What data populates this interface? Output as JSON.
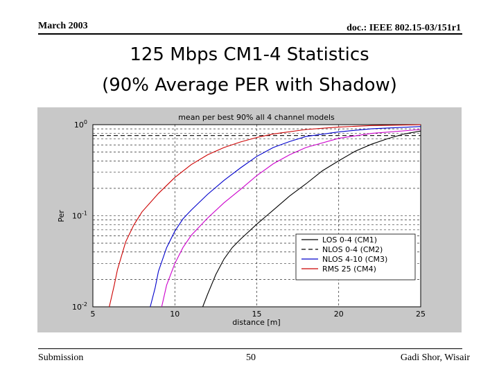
{
  "header": {
    "date": "March 2003",
    "doc": "doc.: IEEE 802.15-03/151r1"
  },
  "slide": {
    "title_line1": "125 Mbps CM1-4 Statistics",
    "title_line2": "(90% Average PER with Shadow)"
  },
  "footer": {
    "left": "Submission",
    "page": "50",
    "right": "Gadi Shor, Wisair"
  },
  "chart_data": {
    "type": "line",
    "title": "mean per best 90% all 4 channel models",
    "xlabel": "distance [m]",
    "ylabel": "Per",
    "xlim": [
      5,
      25
    ],
    "ylim": [
      0.01,
      1
    ],
    "yscale": "log",
    "grid": true,
    "legend_position": "lower-right",
    "x_ticks": [
      "5",
      "10",
      "15",
      "20",
      "25"
    ],
    "y_ticks": [
      {
        "base": "10",
        "exp": "0",
        "value": 1
      },
      {
        "base": "10",
        "exp": "-1",
        "value": 0.1
      },
      {
        "base": "10",
        "exp": "-2",
        "value": 0.01
      }
    ],
    "series": [
      {
        "name": "LOS 0-4 (CM1)",
        "color": "#000000",
        "style": "solid",
        "x": [
          11.7,
          12.0,
          12.5,
          13.0,
          13.5,
          14.0,
          15.0,
          16.0,
          17.0,
          18.0,
          19.0,
          20.0,
          21.0,
          22.0,
          23.0,
          24.0,
          25.0
        ],
        "y": [
          0.01,
          0.0137,
          0.0226,
          0.0335,
          0.0446,
          0.0551,
          0.0808,
          0.1152,
          0.1643,
          0.2236,
          0.3113,
          0.4019,
          0.5105,
          0.6098,
          0.7027,
          0.7908,
          0.8511
        ]
      },
      {
        "name": "NLOS 0-4 (CM2)",
        "color": "#000000",
        "style": "dashed",
        "x": [
          5,
          8,
          10,
          12,
          14,
          16,
          18,
          20,
          22,
          24,
          25
        ],
        "y": [
          0.7596,
          0.7596,
          0.7596,
          0.7596,
          0.7596,
          0.7596,
          0.7596,
          0.7596,
          0.7596,
          0.7596,
          0.7596
        ]
      },
      {
        "name": "NLOS 4-10 (CM3)",
        "color": "#0000cc",
        "style": "solid",
        "x": [
          8.5,
          8.8,
          9.0,
          9.5,
          10.0,
          10.5,
          11.0,
          12.0,
          13.0,
          14.0,
          15.0,
          16.0,
          17.0,
          18.0,
          20.0,
          22.0,
          25.0
        ],
        "y": [
          0.01,
          0.0162,
          0.0245,
          0.0446,
          0.0678,
          0.0926,
          0.1152,
          0.1718,
          0.2445,
          0.3345,
          0.4481,
          0.5613,
          0.6524,
          0.7413,
          0.8336,
          0.9011,
          0.9533
        ]
      },
      {
        "name": "RMS 25 (CM4)",
        "color": "#cc0000",
        "style": "solid",
        "x": [
          6.0,
          6.3,
          6.5,
          7.0,
          7.5,
          8.0,
          9.0,
          10.0,
          11.0,
          12.0,
          13.0,
          14.0,
          15.0,
          16.0,
          18.0,
          20.0,
          22.0,
          25.0
        ],
        "y": [
          0.01,
          0.0171,
          0.0256,
          0.0516,
          0.0792,
          0.1103,
          0.1757,
          0.2632,
          0.3641,
          0.4669,
          0.5613,
          0.6455,
          0.7237,
          0.7908,
          0.8844,
          0.9424,
          0.9768,
          0.9976
        ]
      },
      {
        "name": "",
        "color": "#cc00cc",
        "style": "solid",
        "x": [
          9.2,
          9.5,
          10.0,
          10.5,
          11.0,
          12.0,
          13.0,
          14.0,
          15.0,
          16.0,
          17.0,
          18.0,
          20.0,
          22.0,
          25.0
        ],
        "y": [
          0.01,
          0.0173,
          0.0299,
          0.0449,
          0.0608,
          0.0943,
          0.1388,
          0.1941,
          0.2758,
          0.3716,
          0.4669,
          0.5613,
          0.7084,
          0.8016,
          0.8844
        ]
      }
    ]
  }
}
